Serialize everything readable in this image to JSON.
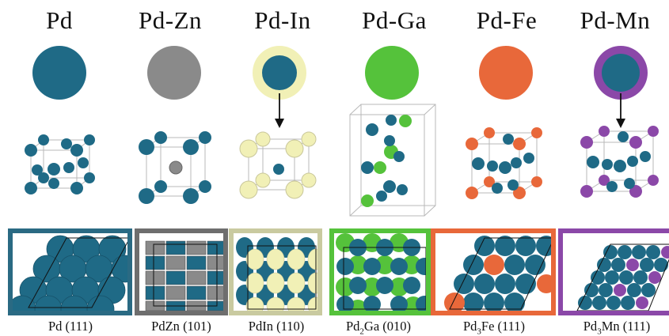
{
  "colors": {
    "pd": "#1f6a86",
    "zn": "#8a8a8a",
    "in": "#f1f0b6",
    "ga": "#55c23b",
    "fe": "#e8683a",
    "mn": "#8b48a8",
    "panel_pd": "#2a6a83",
    "panel_zn": "#6e6e6e",
    "panel_in": "#c9caa0",
    "panel_ga": "#55c23b",
    "panel_fe": "#e8683a",
    "panel_mn": "#8b48a8"
  },
  "columns": [
    {
      "title": "Pd",
      "caption_main": "Pd",
      "caption_sub": "",
      "caption_rest": " (111)"
    },
    {
      "title": "Pd-Zn",
      "caption_main": "PdZn",
      "caption_sub": "",
      "caption_rest": " (101)"
    },
    {
      "title": "Pd-In",
      "caption_main": "PdIn",
      "caption_sub": "",
      "caption_rest": " (110)"
    },
    {
      "title": "Pd-Ga",
      "caption_main": "Pd",
      "caption_sub": "2",
      "caption_rest": "Ga (010)"
    },
    {
      "title": "Pd-Fe",
      "caption_main": "Pd",
      "caption_sub": "3",
      "caption_rest": "Fe (111)"
    },
    {
      "title": "Pd-Mn",
      "caption_main": "Pd",
      "caption_sub": "3",
      "caption_rest": "Mn (111)"
    }
  ]
}
